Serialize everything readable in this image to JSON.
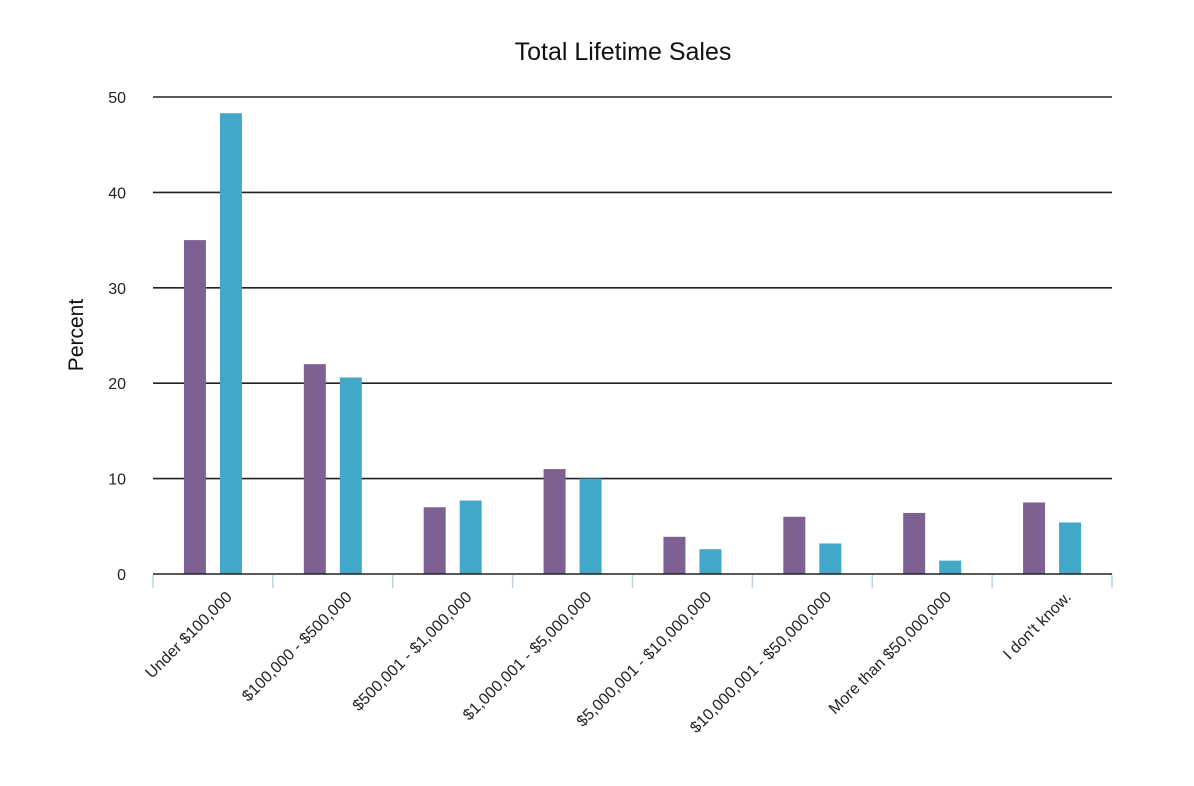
{
  "chart_data": {
    "type": "bar",
    "title": "Total Lifetime Sales",
    "xlabel": "",
    "ylabel": "Percent",
    "ylim": [
      0,
      50
    ],
    "yticks": [
      0,
      10,
      20,
      30,
      40,
      50
    ],
    "grid": true,
    "legend": "none",
    "categories": [
      "Under $100,000",
      "$100,000 - $500,000",
      "$500,001 - $1,000,000",
      "$1,000,001 - $5,000,000",
      "$5,000,001 - $10,000,000",
      "$10,000,001 - $50,000,000",
      "More than $50,000,000",
      "I don't know."
    ],
    "series": [
      {
        "color": "#7d6192",
        "values": [
          35,
          22,
          7,
          11,
          3.9,
          6,
          6.4,
          7.5
        ]
      },
      {
        "color": "#43a8c8",
        "values": [
          48.3,
          20.6,
          7.7,
          10,
          2.6,
          3.2,
          1.4,
          5.4
        ]
      }
    ]
  }
}
